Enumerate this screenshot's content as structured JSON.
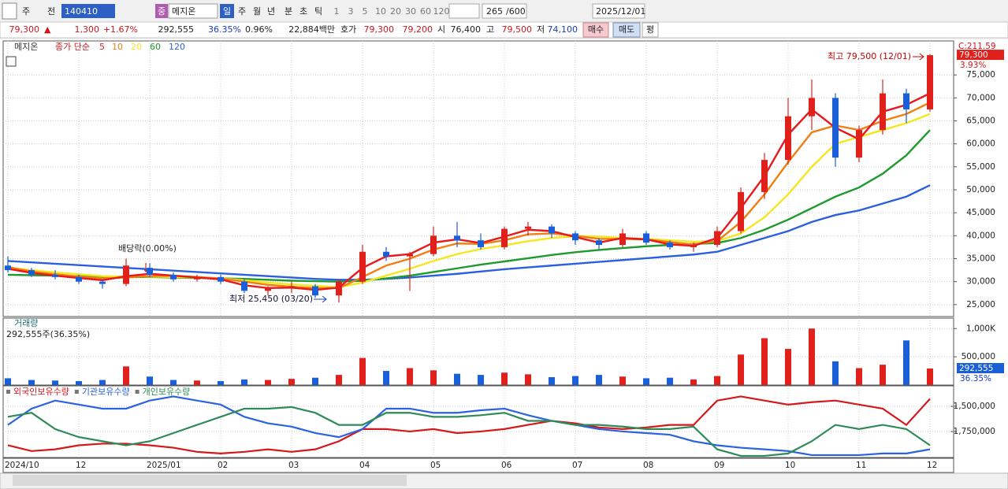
{
  "header": {
    "toolbar": [
      "주",
      "전",
      "140410",
      "중",
      "메지온",
      "일",
      "주",
      "월",
      "년",
      "분",
      "초",
      "틱",
      "1",
      "3",
      "5",
      "10",
      "20",
      "30",
      "60",
      "120",
      "265",
      "/600",
      "2025/12/01"
    ],
    "quote": [
      "79,300",
      "▲",
      "1,300",
      "+1.67%",
      "292,555",
      "36.35%",
      "0.96%",
      "22,884백만",
      "호가",
      "79,300",
      "79,200",
      "시",
      "76,400",
      "고",
      "79,500",
      "저",
      "74,100",
      "매수",
      "매도",
      "평"
    ]
  },
  "chart_data": [
    {
      "type": "candlestick",
      "title": "메지온",
      "ma_label": "종가 단순",
      "categories": [
        "2024/10",
        null,
        null,
        "12",
        null,
        null,
        "2025/01",
        null,
        null,
        "02",
        null,
        null,
        "03",
        null,
        null,
        "04",
        null,
        null,
        "05",
        null,
        null,
        "06",
        null,
        null,
        "07",
        null,
        null,
        "08",
        null,
        null,
        "09",
        null,
        null,
        "10",
        null,
        null,
        "11",
        null,
        null,
        "12"
      ],
      "candles": {
        "open": [
          33500,
          32500,
          31500,
          31000,
          30000,
          29500,
          33000,
          31500,
          30500,
          31000,
          30000,
          28000,
          28500,
          29000,
          27000,
          30000,
          36500,
          35500,
          36000,
          40000,
          39000,
          37500,
          41500,
          42000,
          40500,
          39000,
          38000,
          40500,
          38500,
          37500,
          38000,
          41000,
          49500,
          56500,
          66000,
          70000,
          57000,
          63000,
          71000,
          67500
        ],
        "high": [
          35500,
          33000,
          32500,
          31500,
          30500,
          35000,
          34000,
          32000,
          31500,
          31500,
          30500,
          29000,
          30000,
          29500,
          30500,
          38000,
          37500,
          36500,
          42000,
          43000,
          40500,
          42000,
          43000,
          42500,
          41000,
          39500,
          41500,
          41000,
          39000,
          38500,
          42000,
          50500,
          58000,
          70000,
          74000,
          71000,
          64000,
          74000,
          72000,
          79500
        ],
        "low": [
          32000,
          31000,
          30500,
          29500,
          28500,
          29000,
          31000,
          30000,
          30000,
          29500,
          27500,
          27000,
          27500,
          26500,
          25450,
          29500,
          34500,
          28000,
          35500,
          37500,
          37000,
          37000,
          40000,
          39500,
          38000,
          37000,
          37500,
          38000,
          37000,
          36500,
          37500,
          40500,
          48000,
          55500,
          63000,
          55000,
          56000,
          62000,
          64500,
          67000
        ],
        "close": [
          32500,
          31500,
          31000,
          30000,
          29500,
          33500,
          31500,
          30500,
          31000,
          30000,
          28000,
          28500,
          29000,
          27000,
          30000,
          36500,
          35500,
          36000,
          40000,
          39000,
          37500,
          41500,
          42000,
          40500,
          39000,
          38000,
          40500,
          38500,
          37500,
          38000,
          41000,
          49500,
          56500,
          66000,
          70000,
          57000,
          63000,
          71000,
          67500,
          79300
        ]
      },
      "up_color": "#e0201b",
      "down_color": "#1a5ed8",
      "series": [
        {
          "name": "5",
          "color": "#e8191c",
          "values": [
            32800,
            31900,
            31300,
            30800,
            30300,
            31200,
            31700,
            31300,
            30900,
            30500,
            29200,
            28600,
            28700,
            28200,
            28700,
            33000,
            35500,
            36000,
            38500,
            39200,
            38400,
            39800,
            41300,
            41000,
            39700,
            38500,
            39500,
            39200,
            38100,
            37800,
            39500,
            46000,
            53000,
            62000,
            67500,
            63500,
            61000,
            67000,
            68500,
            71000
          ]
        },
        {
          "name": "10",
          "color": "#f07f12",
          "values": [
            33200,
            32200,
            31600,
            31100,
            30700,
            30900,
            31200,
            31300,
            31000,
            30700,
            30000,
            29300,
            28900,
            28600,
            28600,
            31000,
            33500,
            35000,
            37000,
            38300,
            38200,
            39000,
            40300,
            40500,
            40000,
            39300,
            39300,
            39200,
            38600,
            38100,
            38800,
            43000,
            49000,
            56000,
            62500,
            64000,
            63000,
            65000,
            66500,
            69000
          ]
        },
        {
          "name": "20",
          "color": "#f5e620",
          "values": [
            33000,
            32500,
            32000,
            31600,
            31200,
            31100,
            31100,
            31000,
            30900,
            30700,
            30300,
            29800,
            29400,
            29100,
            28800,
            29800,
            31300,
            32800,
            34500,
            36000,
            37100,
            37900,
            38800,
            39500,
            39900,
            39800,
            39500,
            39300,
            39000,
            38700,
            38800,
            40500,
            44000,
            49000,
            55000,
            60000,
            61500,
            63000,
            64500,
            66500
          ]
        },
        {
          "name": "60",
          "color": "#1e9a2e",
          "values": [
            31500,
            31400,
            31300,
            31200,
            31100,
            31000,
            31000,
            30900,
            30800,
            30700,
            30600,
            30400,
            30200,
            30100,
            30000,
            30200,
            30700,
            31300,
            32100,
            32900,
            33700,
            34400,
            35100,
            35800,
            36400,
            36900,
            37300,
            37700,
            38000,
            38200,
            38400,
            39500,
            41300,
            43500,
            46000,
            48500,
            50500,
            53500,
            57500,
            63000
          ]
        },
        {
          "name": "120",
          "color": "#2b5fe0",
          "values": [
            34500,
            34200,
            33900,
            33600,
            33300,
            33000,
            32700,
            32400,
            32100,
            31800,
            31500,
            31200,
            30900,
            30600,
            30400,
            30400,
            30600,
            30900,
            31300,
            31700,
            32200,
            32700,
            33100,
            33500,
            33900,
            34300,
            34700,
            35100,
            35500,
            35900,
            36500,
            38000,
            39500,
            41000,
            43000,
            44500,
            45500,
            47000,
            48500,
            51000
          ]
        }
      ],
      "ylim": [
        22400,
        82400
      ],
      "yticks": [
        {
          "value": 25000,
          "label": "25,000"
        },
        {
          "value": 30000,
          "label": "30,000"
        },
        {
          "value": 35000,
          "label": "35,000"
        },
        {
          "value": 40000,
          "label": "40,000"
        },
        {
          "value": 45000,
          "label": "45,000"
        },
        {
          "value": 50000,
          "label": "50,000"
        },
        {
          "value": 55000,
          "label": "55,000"
        },
        {
          "value": 60000,
          "label": "60,000"
        },
        {
          "value": 65000,
          "label": "65,000"
        },
        {
          "value": 70000,
          "label": "70,000"
        },
        {
          "value": 75000,
          "label": "75,000"
        }
      ],
      "grid": true,
      "last_label": {
        "value": 79300,
        "label": "79,300"
      },
      "axis_texts": [
        "C:211.59",
        "3.93%"
      ],
      "annotations": [
        "배당락(0.00%)",
        "최고 79,500 (12/01)",
        "최저 25,450 (03/20)"
      ]
    },
    {
      "type": "bar",
      "title": "거래량",
      "subtitle": "292,555주(36.35%)",
      "values": [
        120000,
        90000,
        80000,
        70000,
        90000,
        330000,
        150000,
        90000,
        80000,
        70000,
        100000,
        90000,
        110000,
        130000,
        180000,
        480000,
        250000,
        300000,
        260000,
        200000,
        180000,
        220000,
        190000,
        140000,
        160000,
        180000,
        150000,
        120000,
        130000,
        100000,
        160000,
        540000,
        830000,
        640000,
        1000000,
        420000,
        300000,
        360000,
        790000,
        292555
      ],
      "ylim": [
        0,
        1185000
      ],
      "yticks": [
        {
          "value": 500000,
          "label": "500,000"
        },
        {
          "value": 1000000,
          "label": "1,000K"
        }
      ],
      "last_label": {
        "value": 292555,
        "label": "292,555"
      },
      "axis_texts": [
        "36.35%"
      ]
    },
    {
      "type": "line",
      "series": [
        {
          "name": "외국인보유수량",
          "color": "#d4181c",
          "values": [
            -1887000,
            -1944000,
            -1927000,
            -1887000,
            -1871000,
            -1871000,
            -1887000,
            -1911000,
            -1952000,
            -1968000,
            -1952000,
            -1927000,
            -1952000,
            -1927000,
            -1847000,
            -1726000,
            -1726000,
            -1750000,
            -1726000,
            -1766000,
            -1750000,
            -1726000,
            -1685000,
            -1645000,
            -1669000,
            -1710000,
            -1726000,
            -1710000,
            -1685000,
            -1685000,
            -1444000,
            -1403000,
            -1444000,
            -1484000,
            -1460000,
            -1444000,
            -1484000,
            -1524000,
            -1685000,
            -1427000
          ]
        },
        {
          "name": "기관보유수량",
          "color": "#2b62e0",
          "values": [
            -1685000,
            -1524000,
            -1444000,
            -1484000,
            -1524000,
            -1524000,
            -1444000,
            -1403000,
            -1444000,
            -1484000,
            -1605000,
            -1669000,
            -1702000,
            -1766000,
            -1806000,
            -1726000,
            -1524000,
            -1524000,
            -1565000,
            -1565000,
            -1540000,
            -1524000,
            -1589000,
            -1645000,
            -1685000,
            -1726000,
            -1750000,
            -1766000,
            -1782000,
            -1847000,
            -1887000,
            -1911000,
            -1927000,
            -1944000,
            -1984000,
            -1984000,
            -1984000,
            -1968000,
            -1968000,
            -1927000
          ]
        },
        {
          "name": "개인보유수량",
          "color": "#2e8b57",
          "values": [
            -1605000,
            -1565000,
            -1726000,
            -1806000,
            -1847000,
            -1887000,
            -1847000,
            -1766000,
            -1685000,
            -1605000,
            -1524000,
            -1524000,
            -1508000,
            -1565000,
            -1685000,
            -1685000,
            -1565000,
            -1565000,
            -1605000,
            -1605000,
            -1589000,
            -1565000,
            -1645000,
            -1645000,
            -1685000,
            -1685000,
            -1702000,
            -1726000,
            -1726000,
            -1702000,
            -1927000,
            -1992000,
            -1992000,
            -1968000,
            -1847000,
            -1685000,
            -1726000,
            -1685000,
            -1726000,
            -1887000
          ]
        }
      ],
      "ylim": [
        -2008000,
        -1298000
      ],
      "yticks": [
        {
          "value": -1500000,
          "label": "-1,500,000"
        },
        {
          "value": -1750000,
          "label": "-1,750,000"
        }
      ]
    }
  ]
}
